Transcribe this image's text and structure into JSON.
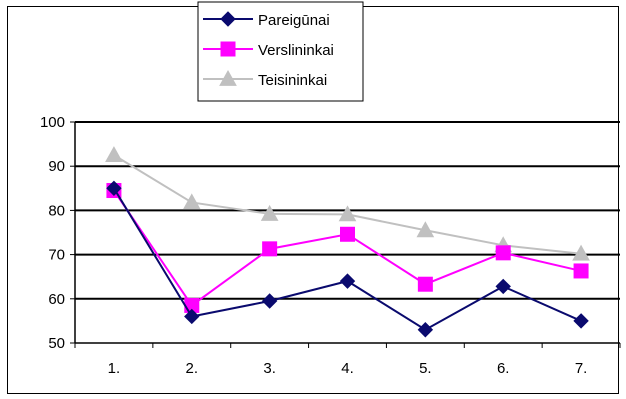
{
  "chart_data": {
    "type": "line",
    "categories": [
      "1.",
      "2.",
      "3.",
      "4.",
      "5.",
      "6.",
      "7."
    ],
    "ylim": [
      50,
      100
    ],
    "yticks": [
      50,
      60,
      70,
      80,
      90,
      100
    ],
    "grid": true,
    "legend_position": "top",
    "series": [
      {
        "name": "Pareigūnai",
        "color": "#0a0a6e",
        "marker": "diamond",
        "values": [
          85,
          56,
          59.5,
          64,
          53,
          62.8,
          55
        ]
      },
      {
        "name": "Verslininkai",
        "color": "#ff00ff",
        "marker": "square",
        "values": [
          84.5,
          58.5,
          71.3,
          74.6,
          63.3,
          70.4,
          66.3
        ]
      },
      {
        "name": "Teisininkai",
        "color": "#c0c0c0",
        "marker": "triangle",
        "values": [
          92.5,
          81.8,
          79.2,
          79.1,
          75.5,
          72.1,
          70.2
        ]
      }
    ]
  }
}
